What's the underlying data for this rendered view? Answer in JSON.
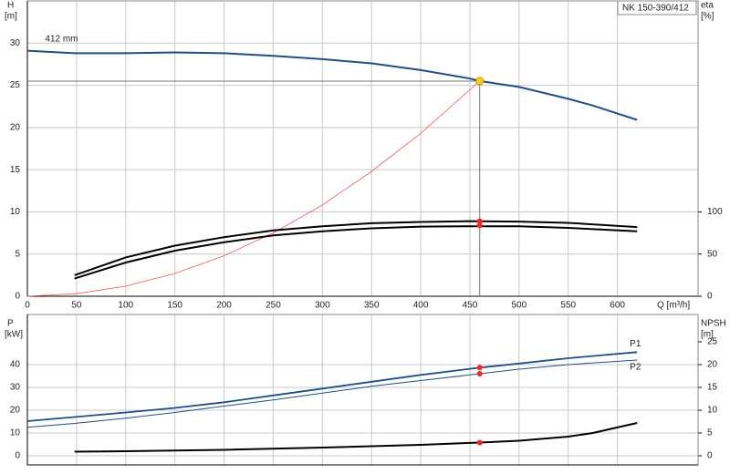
{
  "chart_data": [
    {
      "type": "line",
      "title": "NK 150-390/412",
      "annotation": "412 mm",
      "xlabel": "Q [m³/h]",
      "ylabel": [
        "H",
        "[m]"
      ],
      "y2label": [
        "eta",
        "[%]"
      ],
      "xlim": [
        0,
        682
      ],
      "xticks": [
        0,
        50,
        100,
        150,
        200,
        250,
        300,
        350,
        400,
        450,
        500,
        550,
        600
      ],
      "ylim": [
        0,
        35
      ],
      "yticks": [
        0,
        5,
        10,
        15,
        20,
        25,
        30
      ],
      "y2lim": [
        0,
        350
      ],
      "y2ticks": [
        0,
        50,
        100
      ],
      "grid": true,
      "series": [
        {
          "color": "#1f4e8c",
          "x": [
            0,
            48,
            100,
            150,
            200,
            250,
            300,
            350,
            400,
            450,
            460,
            500,
            550,
            575,
            620
          ],
          "values": [
            29.1,
            28.8,
            28.8,
            28.9,
            28.8,
            28.5,
            28.1,
            27.6,
            26.8,
            25.8,
            25.5,
            24.8,
            23.4,
            22.6,
            20.9
          ]
        },
        {
          "color": "#f05a5a",
          "x": [
            0,
            50,
            100,
            150,
            200,
            250,
            300,
            350,
            400,
            460
          ],
          "values": [
            0,
            0.3,
            1.2,
            2.7,
            4.8,
            7.5,
            10.8,
            14.8,
            19.3,
            25.5
          ]
        },
        {
          "color": "#000000",
          "axis": "y2",
          "x": [
            48,
            100,
            150,
            200,
            250,
            300,
            350,
            400,
            450,
            500,
            550,
            620
          ],
          "values": [
            25,
            46,
            60,
            70,
            78,
            83,
            86.5,
            88,
            89,
            88.5,
            87,
            82
          ]
        },
        {
          "color": "#000000",
          "axis": "y2",
          "x": [
            48,
            100,
            150,
            200,
            250,
            300,
            350,
            400,
            460,
            500,
            550,
            620
          ],
          "values": [
            21,
            40,
            54,
            64,
            72,
            77,
            80.5,
            82.5,
            83,
            83,
            81,
            77
          ]
        }
      ],
      "marker_color": "#ff2020",
      "points": [
        {
          "x": 460,
          "y": 89,
          "axis": "y2"
        },
        {
          "x": 460,
          "y": 84,
          "axis": "y2"
        }
      ],
      "operating_point": {
        "x": 460,
        "y": 25.5
      }
    },
    {
      "type": "line",
      "ylabel": [
        "P",
        "[kW]"
      ],
      "y2label": [
        "NPSH",
        "[m]"
      ],
      "xlim": [
        0,
        682
      ],
      "ylim": [
        -4,
        62
      ],
      "yticks": [
        0,
        10,
        20,
        30,
        40
      ],
      "y2lim": [
        -2,
        31
      ],
      "y2ticks": [
        0,
        5,
        10,
        15,
        20,
        25
      ],
      "grid": true,
      "series": [
        {
          "name": "P1",
          "color": "#1f4e8c",
          "x": [
            0,
            48,
            100,
            150,
            200,
            250,
            300,
            350,
            400,
            460,
            500,
            550,
            620
          ],
          "values": [
            15.2,
            17,
            19,
            21,
            23.5,
            26.5,
            29.5,
            32.5,
            35.5,
            38.7,
            40.5,
            42.8,
            45.5
          ]
        },
        {
          "name": "P2",
          "color": "#1f4e8c",
          "x": [
            0,
            48,
            100,
            150,
            200,
            250,
            300,
            350,
            400,
            460,
            500,
            550,
            620
          ],
          "values": [
            12.5,
            14.2,
            16.5,
            19,
            21.8,
            24.5,
            27.5,
            30.5,
            33,
            36,
            38,
            40,
            42
          ]
        },
        {
          "color": "#000000",
          "axis": "y2",
          "x": [
            48,
            100,
            200,
            300,
            400,
            460,
            500,
            550,
            575,
            620
          ],
          "values": [
            0.9,
            1,
            1.3,
            1.8,
            2.4,
            2.9,
            3.3,
            4.2,
            5,
            7.2
          ]
        }
      ],
      "marker_color": "#ff2020",
      "points": [
        {
          "x": 460,
          "y": 38.7
        },
        {
          "x": 460,
          "y": 36
        },
        {
          "x": 460,
          "y": 2.9,
          "axis": "y2"
        }
      ]
    }
  ]
}
